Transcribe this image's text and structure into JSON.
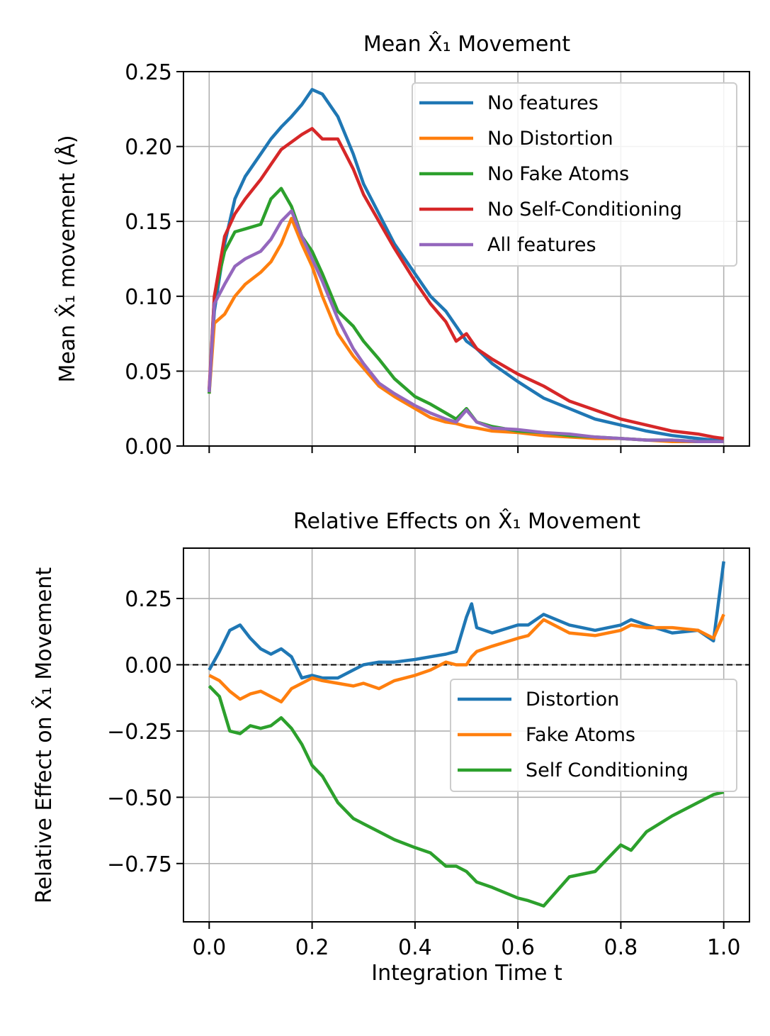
{
  "chart_data": [
    {
      "type": "line",
      "title": "Mean X̂₁ Movement",
      "xlabel": "",
      "ylabel": "Mean X̂₁ movement (Å)",
      "xlim": [
        -0.05,
        1.05
      ],
      "ylim": [
        0.0,
        0.25
      ],
      "xticks": [
        "0.0",
        "0.2",
        "0.4",
        "0.6",
        "0.8",
        "1.0"
      ],
      "yticks": [
        "0.00",
        "0.05",
        "0.10",
        "0.15",
        "0.20",
        "0.25"
      ],
      "grid": true,
      "legend_position": "top-right",
      "x": [
        0.0,
        0.01,
        0.03,
        0.05,
        0.07,
        0.1,
        0.12,
        0.14,
        0.16,
        0.18,
        0.2,
        0.22,
        0.25,
        0.28,
        0.3,
        0.33,
        0.36,
        0.4,
        0.43,
        0.46,
        0.48,
        0.5,
        0.52,
        0.55,
        0.6,
        0.65,
        0.7,
        0.75,
        0.8,
        0.85,
        0.9,
        0.95,
        0.98,
        1.0
      ],
      "series": [
        {
          "name": "No features",
          "color": "#1f77b4",
          "values": [
            0.037,
            0.09,
            0.135,
            0.165,
            0.18,
            0.195,
            0.205,
            0.213,
            0.22,
            0.228,
            0.238,
            0.235,
            0.22,
            0.195,
            0.175,
            0.155,
            0.135,
            0.115,
            0.1,
            0.09,
            0.08,
            0.07,
            0.065,
            0.055,
            0.043,
            0.032,
            0.025,
            0.018,
            0.014,
            0.01,
            0.007,
            0.005,
            0.004,
            0.004
          ]
        },
        {
          "name": "No Distortion",
          "color": "#ff7f0e",
          "values": [
            0.035,
            0.082,
            0.088,
            0.1,
            0.108,
            0.116,
            0.123,
            0.135,
            0.152,
            0.135,
            0.12,
            0.1,
            0.075,
            0.06,
            0.052,
            0.04,
            0.033,
            0.025,
            0.019,
            0.016,
            0.015,
            0.013,
            0.012,
            0.01,
            0.009,
            0.007,
            0.006,
            0.005,
            0.005,
            0.004,
            0.003,
            0.003,
            0.003,
            0.003
          ]
        },
        {
          "name": "No Fake Atoms",
          "color": "#2ca02c",
          "values": [
            0.035,
            0.1,
            0.13,
            0.143,
            0.145,
            0.148,
            0.165,
            0.172,
            0.16,
            0.14,
            0.13,
            0.115,
            0.09,
            0.08,
            0.07,
            0.058,
            0.045,
            0.033,
            0.028,
            0.022,
            0.018,
            0.025,
            0.016,
            0.013,
            0.01,
            0.009,
            0.007,
            0.006,
            0.005,
            0.004,
            0.004,
            0.003,
            0.003,
            0.003
          ]
        },
        {
          "name": "No Self-Conditioning",
          "color": "#d62728",
          "values": [
            0.038,
            0.1,
            0.14,
            0.155,
            0.165,
            0.178,
            0.188,
            0.198,
            0.203,
            0.208,
            0.212,
            0.205,
            0.205,
            0.185,
            0.168,
            0.15,
            0.132,
            0.11,
            0.095,
            0.083,
            0.07,
            0.075,
            0.065,
            0.058,
            0.048,
            0.04,
            0.03,
            0.024,
            0.018,
            0.014,
            0.01,
            0.008,
            0.006,
            0.005
          ]
        },
        {
          "name": "All features",
          "color": "#9467bd",
          "values": [
            0.036,
            0.095,
            0.108,
            0.12,
            0.125,
            0.13,
            0.138,
            0.15,
            0.157,
            0.14,
            0.125,
            0.11,
            0.085,
            0.065,
            0.055,
            0.042,
            0.035,
            0.027,
            0.022,
            0.018,
            0.016,
            0.024,
            0.016,
            0.012,
            0.011,
            0.009,
            0.008,
            0.006,
            0.005,
            0.004,
            0.004,
            0.003,
            0.003,
            0.003
          ]
        }
      ]
    },
    {
      "type": "line",
      "title": "Relative Effects on X̂₁ Movement",
      "xlabel": "Integration Time t",
      "ylabel": "Relative Effect on X̂₁ Movement",
      "xlim": [
        -0.05,
        1.05
      ],
      "ylim": [
        -0.97,
        0.44
      ],
      "xticks": [
        "0.0",
        "0.2",
        "0.4",
        "0.6",
        "0.8",
        "1.0"
      ],
      "yticks": [
        "0.25",
        "0.00",
        "−0.25",
        "−0.50",
        "−0.75"
      ],
      "ytick_values": [
        0.25,
        0.0,
        -0.25,
        -0.5,
        -0.75
      ],
      "reference_line": 0.0,
      "grid": true,
      "legend_position": "center-right",
      "x": [
        0.0,
        0.02,
        0.04,
        0.06,
        0.08,
        0.1,
        0.12,
        0.14,
        0.16,
        0.18,
        0.2,
        0.22,
        0.25,
        0.28,
        0.3,
        0.33,
        0.36,
        0.4,
        0.43,
        0.46,
        0.48,
        0.5,
        0.51,
        0.52,
        0.55,
        0.6,
        0.62,
        0.65,
        0.7,
        0.75,
        0.8,
        0.82,
        0.85,
        0.9,
        0.95,
        0.98,
        1.0
      ],
      "series": [
        {
          "name": "Distortion",
          "color": "#1f77b4",
          "values": [
            -0.02,
            0.05,
            0.13,
            0.15,
            0.1,
            0.06,
            0.04,
            0.06,
            0.03,
            -0.05,
            -0.04,
            -0.05,
            -0.05,
            -0.02,
            0.0,
            0.01,
            0.01,
            0.02,
            0.03,
            0.04,
            0.05,
            0.18,
            0.23,
            0.14,
            0.12,
            0.15,
            0.15,
            0.19,
            0.15,
            0.13,
            0.15,
            0.17,
            0.15,
            0.12,
            0.13,
            0.09,
            0.39
          ]
        },
        {
          "name": "Fake Atoms",
          "color": "#ff7f0e",
          "values": [
            -0.04,
            -0.06,
            -0.1,
            -0.13,
            -0.11,
            -0.1,
            -0.12,
            -0.14,
            -0.09,
            -0.07,
            -0.05,
            -0.06,
            -0.07,
            -0.08,
            -0.07,
            -0.09,
            -0.06,
            -0.04,
            -0.02,
            0.01,
            0.0,
            0.0,
            0.03,
            0.05,
            0.07,
            0.1,
            0.11,
            0.17,
            0.12,
            0.11,
            0.13,
            0.15,
            0.14,
            0.14,
            0.13,
            0.1,
            0.19
          ]
        },
        {
          "name": "Self Conditioning",
          "color": "#2ca02c",
          "values": [
            -0.08,
            -0.12,
            -0.25,
            -0.26,
            -0.23,
            -0.24,
            -0.23,
            -0.2,
            -0.24,
            -0.3,
            -0.38,
            -0.42,
            -0.52,
            -0.58,
            -0.6,
            -0.63,
            -0.66,
            -0.69,
            -0.71,
            -0.76,
            -0.76,
            -0.78,
            -0.8,
            -0.82,
            -0.84,
            -0.88,
            -0.89,
            -0.91,
            -0.8,
            -0.78,
            -0.68,
            -0.7,
            -0.63,
            -0.57,
            -0.52,
            -0.49,
            -0.48
          ]
        }
      ]
    }
  ]
}
